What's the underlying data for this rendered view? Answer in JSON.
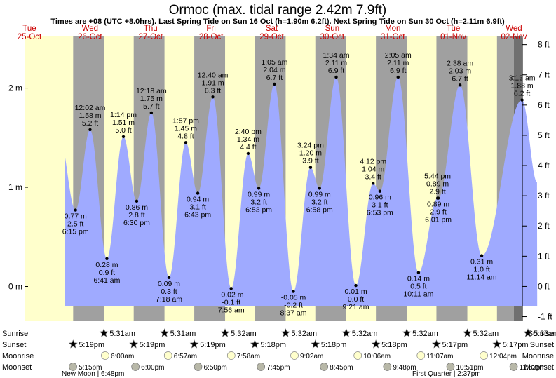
{
  "title": "Ormoc (max. tidal range 2.42m 7.9ft)",
  "subtitle": "Times are +08 (UTC +8.0hrs). Last Spring Tide on Sun 16 Oct (h=1.90m 6.2ft). Next Spring Tide on Sun 30 Oct (h=2.11m 6.9ft)",
  "colors": {
    "day": "#ffffcc",
    "night": "#a0a0a0",
    "water": "#9faaff",
    "day_label": "#cc0000",
    "sun": "#c8c84a",
    "sunset": "#d43a2a",
    "moonrise": "#ffffcc",
    "moonset": "#b8b8a8"
  },
  "chart_data": {
    "type": "area",
    "x_range": [
      "2022-10-25 00:00",
      "2022-11-02 00:00"
    ],
    "ylim_m": [
      -0.35,
      2.52
    ],
    "ylim_ft": [
      -1.15,
      8.27
    ],
    "y_ticks_m": [
      "0 m",
      "1 m",
      "2 m"
    ],
    "y_ticks_ft": [
      "-1 ft",
      "0 ft",
      "1 ft",
      "2 ft",
      "3 ft",
      "4 ft",
      "5 ft",
      "6 ft",
      "7 ft",
      "8 ft"
    ],
    "days": [
      {
        "dow": "Tue",
        "date": "25-Oct"
      },
      {
        "dow": "Wed",
        "date": "26-Oct"
      },
      {
        "dow": "Thu",
        "date": "27-Oct"
      },
      {
        "dow": "Fri",
        "date": "28-Oct"
      },
      {
        "dow": "Sat",
        "date": "29-Oct"
      },
      {
        "dow": "Sun",
        "date": "30-Oct"
      },
      {
        "dow": "Mon",
        "date": "31-Oct"
      },
      {
        "dow": "Tue",
        "date": "01-Nov"
      },
      {
        "dow": "Wed",
        "date": "02-Nov"
      }
    ],
    "tides": [
      {
        "time": "6:15 pm",
        "t": "2022-10-25 18:15",
        "m": 0.77,
        "ft": "2.5 ft",
        "type": "low"
      },
      {
        "time": "12:02 am",
        "t": "2022-10-26 00:02",
        "m": 1.58,
        "ft": "5.2 ft",
        "type": "high"
      },
      {
        "time": "6:41 am",
        "t": "2022-10-26 06:41",
        "m": 0.28,
        "ft": "0.9 ft",
        "type": "low"
      },
      {
        "time": "1:14 pm",
        "t": "2022-10-26 13:14",
        "m": 1.51,
        "ft": "5.0 ft",
        "type": "high"
      },
      {
        "time": "6:30 pm",
        "t": "2022-10-26 18:30",
        "m": 0.86,
        "ft": "2.8 ft",
        "type": "low"
      },
      {
        "time": "12:18 am",
        "t": "2022-10-27 00:18",
        "m": 1.75,
        "ft": "5.7 ft",
        "type": "high"
      },
      {
        "time": "7:18 am",
        "t": "2022-10-27 07:18",
        "m": 0.09,
        "ft": "0.3 ft",
        "type": "low"
      },
      {
        "time": "1:57 pm",
        "t": "2022-10-27 13:57",
        "m": 1.45,
        "ft": "4.8 ft",
        "type": "high"
      },
      {
        "time": "6:43 pm",
        "t": "2022-10-27 18:43",
        "m": 0.94,
        "ft": "3.1 ft",
        "type": "low"
      },
      {
        "time": "12:40 am",
        "t": "2022-10-28 00:40",
        "m": 1.91,
        "ft": "6.3 ft",
        "type": "high"
      },
      {
        "time": "7:56 am",
        "t": "2022-10-28 07:56",
        "m": -0.02,
        "ft": "-0.1 ft",
        "type": "low"
      },
      {
        "time": "2:40 pm",
        "t": "2022-10-28 14:40",
        "m": 1.34,
        "ft": "4.4 ft",
        "type": "high"
      },
      {
        "time": "6:53 pm",
        "t": "2022-10-28 18:53",
        "m": 0.99,
        "ft": "3.2 ft",
        "type": "low"
      },
      {
        "time": "1:05 am",
        "t": "2022-10-29 01:05",
        "m": 2.04,
        "ft": "6.7 ft",
        "type": "high"
      },
      {
        "time": "8:37 am",
        "t": "2022-10-29 08:37",
        "m": -0.05,
        "ft": "-0.2 ft",
        "type": "low"
      },
      {
        "time": "3:24 pm",
        "t": "2022-10-29 15:24",
        "m": 1.2,
        "ft": "3.9 ft",
        "type": "high"
      },
      {
        "time": "6:58 pm",
        "t": "2022-10-29 18:58",
        "m": 0.99,
        "ft": "3.2 ft",
        "type": "low"
      },
      {
        "time": "1:34 am",
        "t": "2022-10-30 01:34",
        "m": 2.11,
        "ft": "6.9 ft",
        "type": "high"
      },
      {
        "time": "9:21 am",
        "t": "2022-10-30 09:21",
        "m": 0.01,
        "ft": "0.0 ft",
        "type": "low"
      },
      {
        "time": "4:12 pm",
        "t": "2022-10-30 16:12",
        "m": 1.04,
        "ft": "3.4 ft",
        "type": "high"
      },
      {
        "time": "6:53 pm",
        "t": "2022-10-30 18:53",
        "m": 0.96,
        "ft": "3.1 ft",
        "type": "low"
      },
      {
        "time": "2:05 am",
        "t": "2022-10-31 02:05",
        "m": 2.11,
        "ft": "6.9 ft",
        "type": "high"
      },
      {
        "time": "10:11 am",
        "t": "2022-10-31 10:11",
        "m": 0.14,
        "ft": "0.5 ft",
        "type": "low"
      },
      {
        "time": "5:44 pm",
        "t": "2022-10-31 17:44",
        "m": 0.89,
        "ft": "2.9 ft",
        "type": "high"
      },
      {
        "time": "6:01 pm",
        "t": "2022-10-31 18:01",
        "m": 0.89,
        "ft": "2.9 ft",
        "type": "low"
      },
      {
        "time": "2:38 am",
        "t": "2022-11-01 02:38",
        "m": 2.03,
        "ft": "6.7 ft",
        "type": "high"
      },
      {
        "time": "11:14 am",
        "t": "2022-11-01 11:14",
        "m": 0.31,
        "ft": "1.0 ft",
        "type": "low"
      },
      {
        "time": "3:13 am",
        "t": "2022-11-02 03:13",
        "m": 1.88,
        "ft": "6.2 ft",
        "type": "high"
      }
    ],
    "sunrise": [
      "5:31am",
      "5:31am",
      "5:32am",
      "5:32am",
      "5:32am",
      "5:32am",
      "5:32am",
      "5:33am"
    ],
    "sunset": [
      "5:19pm",
      "5:19pm",
      "5:19pm",
      "5:18pm",
      "5:18pm",
      "5:18pm",
      "5:17pm",
      "5:17pm"
    ],
    "moonrise": [
      "6:00am",
      "6:57am",
      "7:58am",
      "9:02am",
      "10:06am",
      "11:07am",
      "12:04pm"
    ],
    "moonset": [
      "5:15pm",
      "6:00pm",
      "6:50pm",
      "7:45pm",
      "8:45pm",
      "9:48pm",
      "10:51pm",
      "11:53pm"
    ],
    "almanac_labels": [
      "Sunrise",
      "Sunset",
      "Moonrise",
      "Moonset"
    ],
    "moon_phases": [
      "New Moon | 6:48pm",
      "First Quarter | 2:37pm"
    ]
  }
}
